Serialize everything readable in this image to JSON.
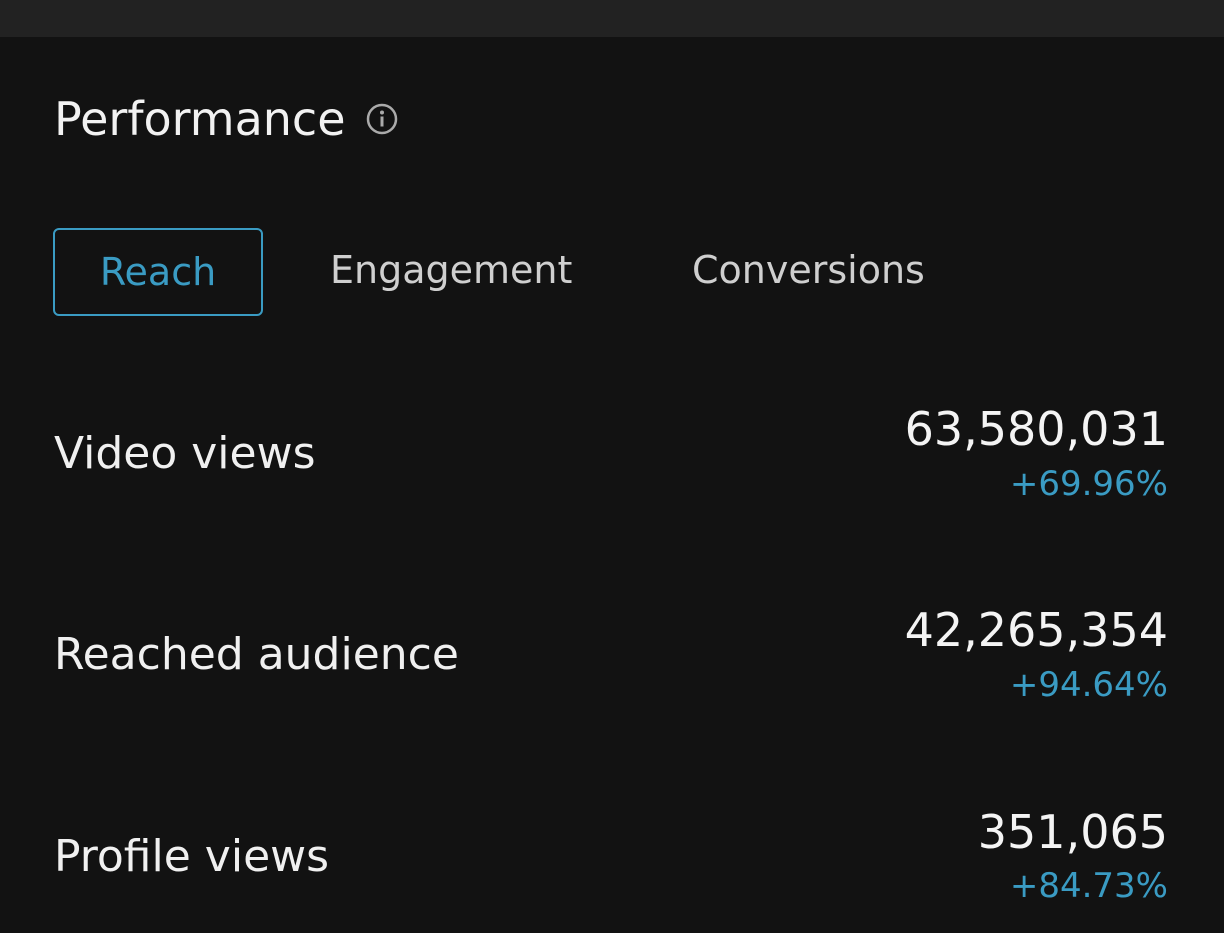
{
  "header": {
    "title": "Performance"
  },
  "tabs": [
    "Reach",
    "Engagement",
    "Conversions"
  ],
  "metrics": [
    {
      "label": "Video views",
      "value": "63,580,031",
      "change": "+69.96%"
    },
    {
      "label": "Reached audience",
      "value": "42,265,354",
      "change": "+94.64%"
    },
    {
      "label": "Profile views",
      "value": "351,065",
      "change": "+84.73%"
    }
  ]
}
